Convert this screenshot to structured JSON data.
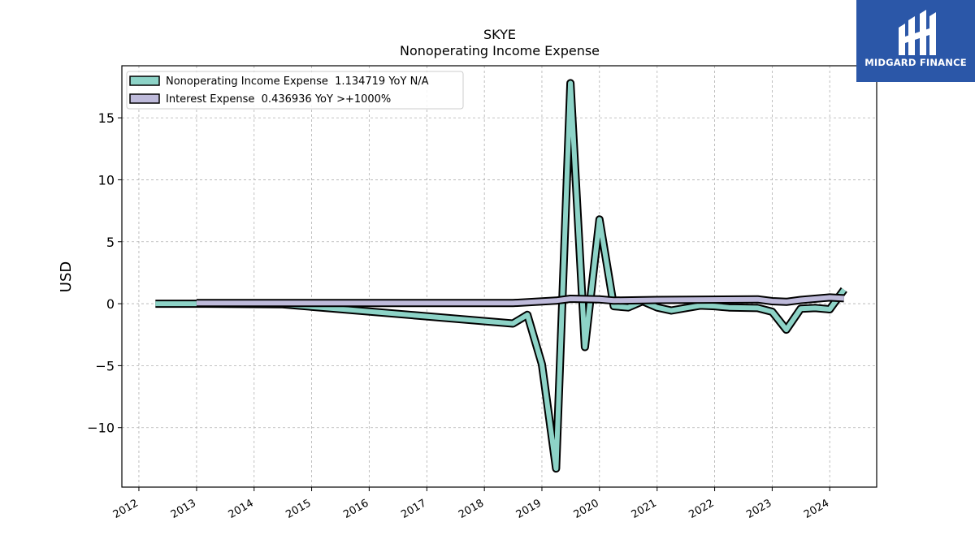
{
  "brand": {
    "name": "MIDGARD FINANCE",
    "color": "#2b57a8"
  },
  "chart_data": {
    "type": "line",
    "title": "SKYE",
    "subtitle": "Nonoperating Income Expense",
    "xlabel": "",
    "ylabel": "USD",
    "x_ticks": [
      "2012",
      "2013",
      "2014",
      "2015",
      "2016",
      "2017",
      "2018",
      "2019",
      "2020",
      "2021",
      "2022",
      "2023",
      "2024"
    ],
    "y_ticks": [
      "−10",
      "−5",
      "0",
      "5",
      "10",
      "15"
    ],
    "xlim": [
      "2011-09-15",
      "2024-10-25"
    ],
    "ylim": [
      -14.8,
      19.2
    ],
    "grid": true,
    "legend_position": "top-left",
    "series": [
      {
        "name": "Nonoperating Income Expense  1.134719 YoY N/A",
        "color": "#8dd3c7",
        "points": [
          [
            "2012-04-15",
            0.0
          ],
          [
            "2013-01-01",
            0.0
          ],
          [
            "2014-07-01",
            -0.05
          ],
          [
            "2018-07-01",
            -1.6
          ],
          [
            "2018-10-01",
            -0.9
          ],
          [
            "2019-01-01",
            -4.9
          ],
          [
            "2019-04-01",
            -13.3
          ],
          [
            "2019-07-01",
            17.8
          ],
          [
            "2019-10-01",
            -3.5
          ],
          [
            "2020-01-01",
            6.8
          ],
          [
            "2020-04-01",
            -0.2
          ],
          [
            "2020-07-01",
            -0.3
          ],
          [
            "2020-10-01",
            0.2
          ],
          [
            "2021-01-01",
            -0.3
          ],
          [
            "2021-04-01",
            -0.55
          ],
          [
            "2021-07-01",
            -0.35
          ],
          [
            "2021-10-01",
            -0.15
          ],
          [
            "2022-01-01",
            -0.2
          ],
          [
            "2022-04-01",
            -0.3
          ],
          [
            "2022-10-01",
            -0.35
          ],
          [
            "2023-01-01",
            -0.65
          ],
          [
            "2023-04-01",
            -2.1
          ],
          [
            "2023-07-01",
            -0.4
          ],
          [
            "2023-10-01",
            -0.35
          ],
          [
            "2024-01-01",
            -0.45
          ],
          [
            "2024-04-01",
            1.134719
          ]
        ]
      },
      {
        "name": "Interest Expense  0.436936 YoY >+1000%",
        "color": "#bebada",
        "points": [
          [
            "2013-01-01",
            0.05
          ],
          [
            "2014-07-01",
            0.05
          ],
          [
            "2018-07-01",
            0.05
          ],
          [
            "2019-04-01",
            0.25
          ],
          [
            "2019-07-01",
            0.4
          ],
          [
            "2020-01-01",
            0.35
          ],
          [
            "2020-04-01",
            0.25
          ],
          [
            "2021-01-01",
            0.3
          ],
          [
            "2022-10-01",
            0.35
          ],
          [
            "2023-01-01",
            0.2
          ],
          [
            "2023-04-01",
            0.15
          ],
          [
            "2023-07-01",
            0.3
          ],
          [
            "2024-01-01",
            0.5
          ],
          [
            "2024-04-01",
            0.436936
          ]
        ]
      }
    ]
  }
}
